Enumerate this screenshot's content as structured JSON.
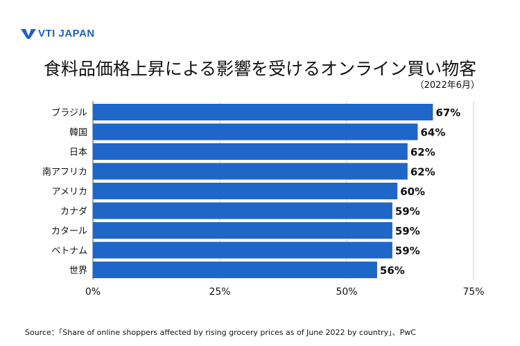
{
  "logo": {
    "text": "VTI JAPAN"
  },
  "chart_data": {
    "type": "bar",
    "orientation": "horizontal",
    "title": "食料品価格上昇による影響を受けるオンライン買い物客",
    "subtitle": "（2022年6月）",
    "categories": [
      "ブラジル",
      "韓国",
      "日本",
      "南アフリカ",
      "アメリカ",
      "カナダ",
      "カタール",
      "ベトナム",
      "世界"
    ],
    "values": [
      67,
      64,
      62,
      62,
      60,
      59,
      59,
      59,
      56
    ],
    "value_labels": [
      "67%",
      "64%",
      "62%",
      "62%",
      "60%",
      "59%",
      "59%",
      "59%",
      "56%"
    ],
    "xticks": [
      "0%",
      "25%",
      "50%",
      "75%"
    ],
    "xtick_values": [
      0,
      25,
      50,
      75
    ],
    "xlim": [
      0,
      75
    ],
    "bar_color": "#1f66c9",
    "grid": true
  },
  "source": "Source：「Share of online shoppers affected by rising grocery prices as of June 2022 by country」、PwC"
}
